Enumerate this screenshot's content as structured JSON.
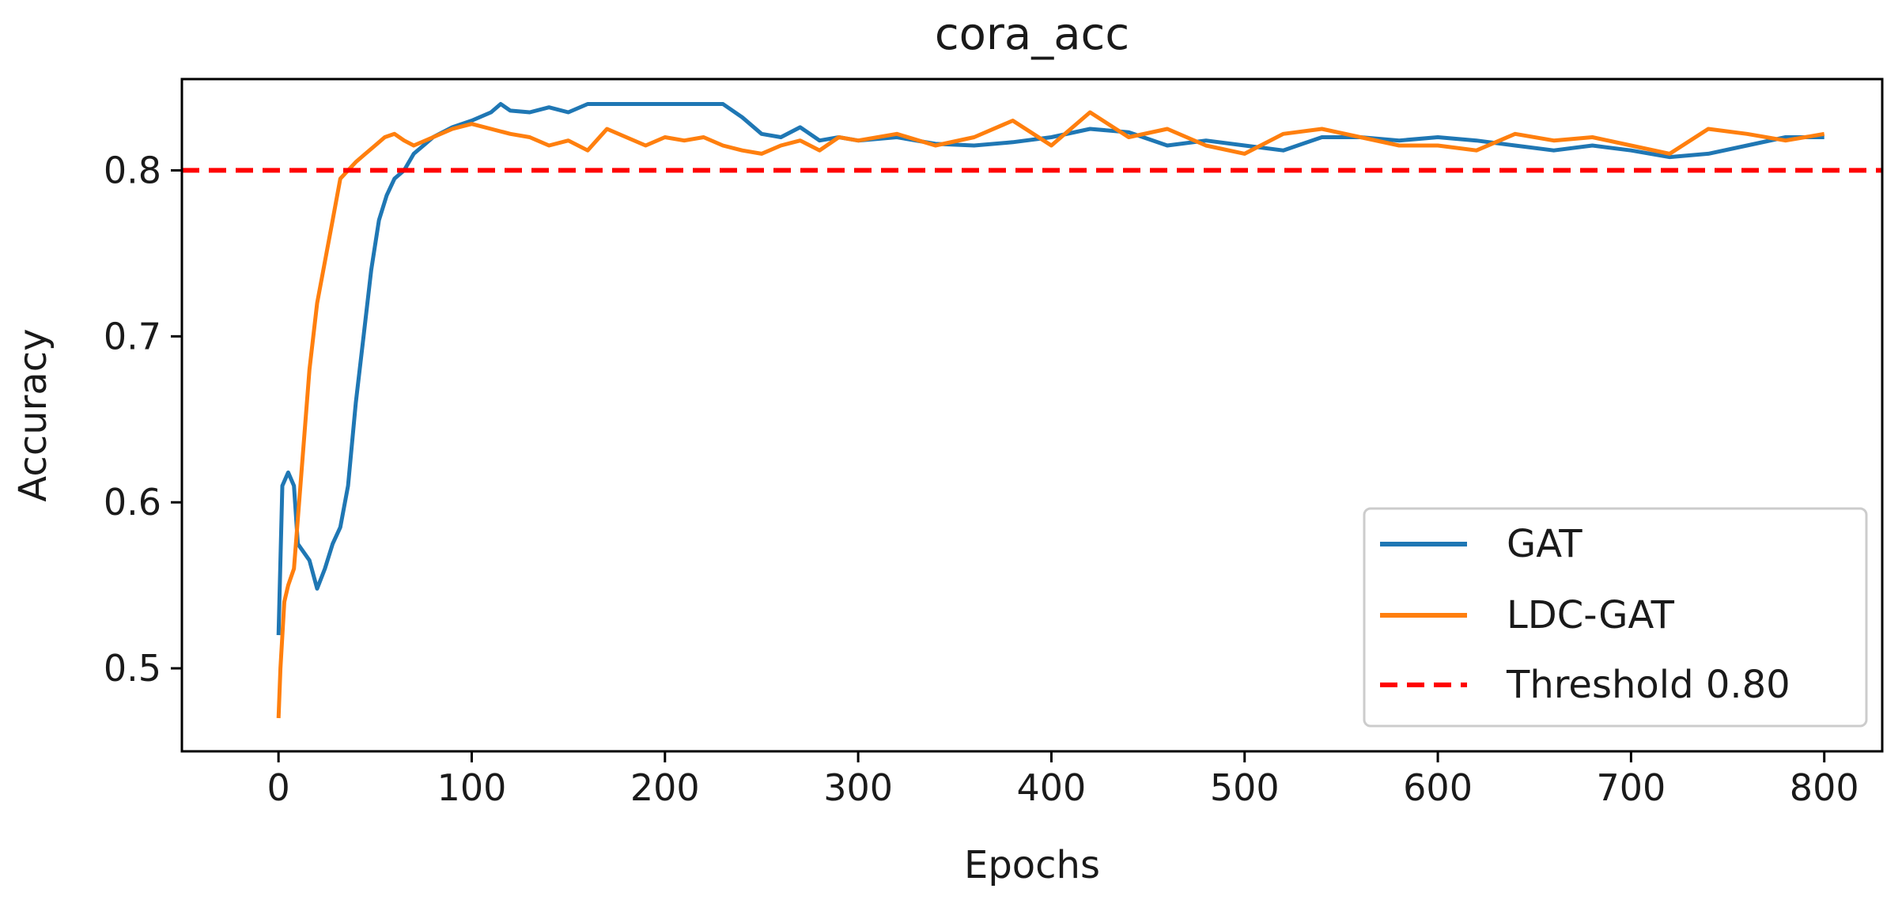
{
  "chart_data": {
    "type": "line",
    "title": "cora_acc",
    "xlabel": "Epochs",
    "ylabel": "Accuracy",
    "xlim": [
      -50,
      830
    ],
    "ylim": [
      0.45,
      0.855
    ],
    "xticks": [
      0,
      100,
      200,
      300,
      400,
      500,
      600,
      700,
      800
    ],
    "yticks": [
      0.5,
      0.6,
      0.7,
      0.8
    ],
    "grid": false,
    "legend_position": "lower-right",
    "threshold": {
      "name": "Threshold 0.80",
      "value": 0.8,
      "color": "#ff0000",
      "style": "dashed"
    },
    "series": [
      {
        "name": "GAT",
        "color": "#1f77b4",
        "x": [
          0,
          2,
          5,
          8,
          10,
          13,
          16,
          20,
          24,
          28,
          32,
          36,
          40,
          44,
          48,
          52,
          56,
          60,
          65,
          70,
          75,
          80,
          90,
          100,
          110,
          115,
          120,
          130,
          140,
          150,
          160,
          170,
          180,
          190,
          200,
          210,
          220,
          230,
          240,
          250,
          260,
          270,
          280,
          290,
          300,
          320,
          340,
          360,
          380,
          400,
          420,
          440,
          460,
          480,
          500,
          520,
          540,
          560,
          580,
          600,
          620,
          640,
          660,
          680,
          700,
          720,
          740,
          760,
          780,
          800
        ],
        "values": [
          0.52,
          0.61,
          0.618,
          0.61,
          0.575,
          0.57,
          0.565,
          0.548,
          0.56,
          0.575,
          0.585,
          0.61,
          0.66,
          0.7,
          0.74,
          0.77,
          0.785,
          0.795,
          0.8,
          0.81,
          0.815,
          0.82,
          0.826,
          0.83,
          0.835,
          0.84,
          0.836,
          0.835,
          0.838,
          0.835,
          0.84,
          0.84,
          0.84,
          0.84,
          0.84,
          0.84,
          0.84,
          0.84,
          0.832,
          0.822,
          0.82,
          0.826,
          0.818,
          0.82,
          0.818,
          0.82,
          0.816,
          0.815,
          0.817,
          0.82,
          0.825,
          0.823,
          0.815,
          0.818,
          0.815,
          0.812,
          0.82,
          0.82,
          0.818,
          0.82,
          0.818,
          0.815,
          0.812,
          0.815,
          0.812,
          0.808,
          0.81,
          0.815,
          0.82,
          0.82
        ]
      },
      {
        "name": "LDC-GAT",
        "color": "#ff7f0e",
        "x": [
          0,
          1,
          3,
          5,
          8,
          12,
          16,
          20,
          24,
          28,
          32,
          36,
          40,
          45,
          50,
          55,
          60,
          65,
          70,
          80,
          90,
          100,
          110,
          120,
          130,
          140,
          150,
          160,
          170,
          180,
          190,
          200,
          210,
          220,
          230,
          240,
          250,
          260,
          270,
          280,
          290,
          300,
          320,
          340,
          360,
          380,
          400,
          420,
          440,
          460,
          480,
          500,
          520,
          540,
          560,
          580,
          600,
          620,
          640,
          660,
          680,
          700,
          720,
          740,
          760,
          780,
          800
        ],
        "values": [
          0.47,
          0.5,
          0.54,
          0.55,
          0.56,
          0.62,
          0.68,
          0.72,
          0.745,
          0.77,
          0.795,
          0.8,
          0.805,
          0.81,
          0.815,
          0.82,
          0.822,
          0.818,
          0.815,
          0.82,
          0.825,
          0.828,
          0.825,
          0.822,
          0.82,
          0.815,
          0.818,
          0.812,
          0.825,
          0.82,
          0.815,
          0.82,
          0.818,
          0.82,
          0.815,
          0.812,
          0.81,
          0.815,
          0.818,
          0.812,
          0.82,
          0.818,
          0.822,
          0.815,
          0.82,
          0.83,
          0.815,
          0.835,
          0.82,
          0.825,
          0.815,
          0.81,
          0.822,
          0.825,
          0.82,
          0.815,
          0.815,
          0.812,
          0.822,
          0.818,
          0.82,
          0.815,
          0.81,
          0.825,
          0.822,
          0.818,
          0.822
        ]
      }
    ]
  }
}
